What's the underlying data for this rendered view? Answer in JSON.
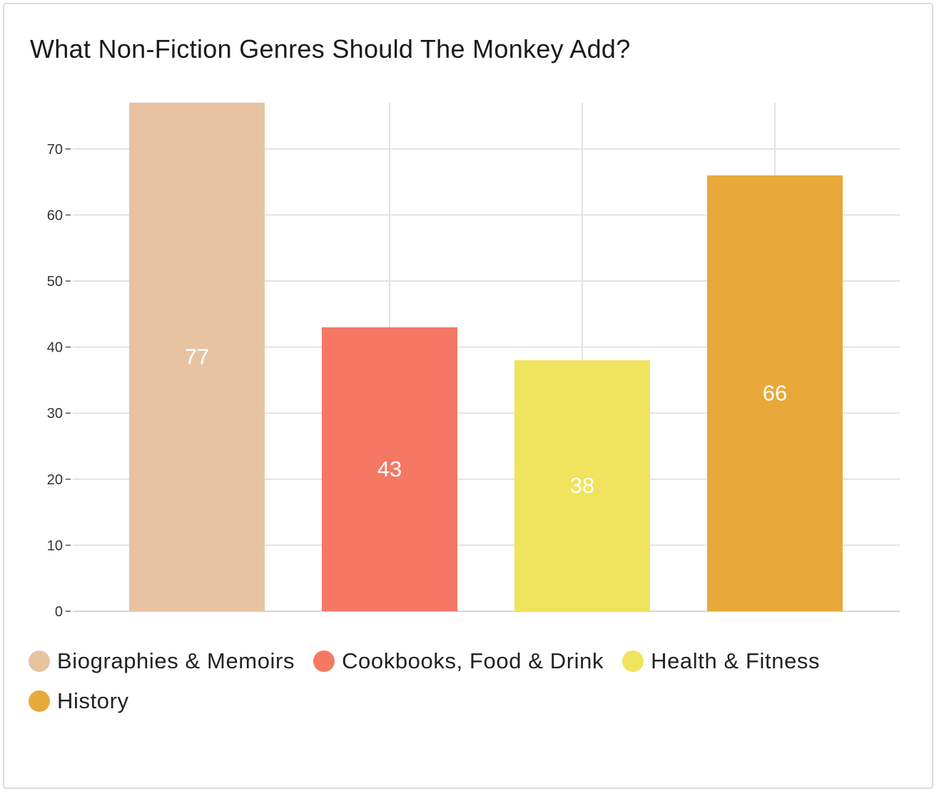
{
  "chart_data": {
    "type": "bar",
    "title": "What Non-Fiction Genres Should The Monkey Add?",
    "categories": [
      "Biographies & Memoirs",
      "Cookbooks, Food & Drink",
      "Health & Fitness",
      "History"
    ],
    "values": [
      77,
      43,
      38,
      66
    ],
    "colors": [
      "#e8c3a2",
      "#f47864",
      "#f0e35d",
      "#e8a93a"
    ],
    "xlabel": "",
    "ylabel": "",
    "ylim": [
      0,
      77
    ],
    "yticks": [
      0,
      10,
      20,
      30,
      40,
      50,
      60,
      70
    ],
    "grid": true,
    "legend_position": "bottom",
    "data_labels": true
  }
}
